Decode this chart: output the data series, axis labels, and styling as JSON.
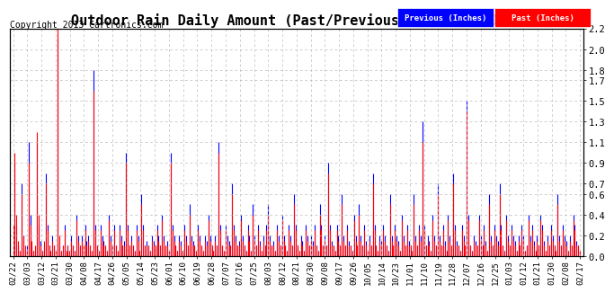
{
  "title": "Outdoor Rain Daily Amount (Past/Previous Year) 20130222",
  "copyright": "Copyright 2013 Cartronics.com",
  "legend_labels": [
    "Previous (Inches)",
    "Past (Inches)"
  ],
  "legend_colors": [
    "#0000FF",
    "#FF0000"
  ],
  "background_color": "#ffffff",
  "plot_bg": "#ffffff",
  "grid_color": "#bbbbbb",
  "ylim": [
    0.0,
    2.2
  ],
  "yticks": [
    0.0,
    0.2,
    0.4,
    0.6,
    0.7,
    0.9,
    1.1,
    1.3,
    1.5,
    1.7,
    1.8,
    2.0,
    2.2
  ],
  "x_tick_labels": [
    "02/22",
    "03/03",
    "03/12",
    "03/21",
    "03/30",
    "04/08",
    "04/17",
    "04/26",
    "05/05",
    "05/14",
    "05/23",
    "06/01",
    "06/10",
    "06/19",
    "06/28",
    "07/07",
    "07/16",
    "07/25",
    "08/03",
    "08/12",
    "08/21",
    "08/30",
    "09/08",
    "09/17",
    "09/26",
    "10/05",
    "10/14",
    "10/23",
    "11/01",
    "11/10",
    "11/19",
    "11/28",
    "12/07",
    "12/16",
    "12/25",
    "01/03",
    "01/12",
    "01/21",
    "01/30",
    "02/08",
    "02/17"
  ],
  "title_fontsize": 11,
  "copyright_fontsize": 7,
  "tick_fontsize": 6.5,
  "ytick_fontsize": 7.5,
  "prev_rain": [
    0.1,
    0.9,
    0.3,
    0.1,
    0.05,
    0.7,
    0.2,
    0.05,
    0.1,
    1.1,
    0.4,
    0.1,
    0.05,
    0.05,
    1.1,
    0.3,
    0.15,
    0.05,
    0.1,
    0.8,
    0.3,
    0.1,
    0.05,
    0.2,
    0.1,
    0.05,
    2.1,
    0.1,
    0.05,
    0.1,
    0.3,
    0.05,
    0.1,
    0.05,
    0.2,
    0.1,
    0.05,
    0.4,
    0.2,
    0.1,
    0.2,
    0.1,
    0.3,
    0.15,
    0.2,
    0.1,
    0.05,
    1.8,
    0.3,
    0.1,
    0.05,
    0.3,
    0.2,
    0.15,
    0.1,
    0.05,
    0.4,
    0.2,
    0.1,
    0.3,
    0.1,
    0.05,
    0.3,
    0.2,
    0.1,
    0.15,
    1.0,
    0.3,
    0.1,
    0.2,
    0.1,
    0.05,
    0.3,
    0.2,
    0.05,
    0.6,
    0.3,
    0.1,
    0.15,
    0.1,
    0.05,
    0.2,
    0.15,
    0.1,
    0.3,
    0.2,
    0.1,
    0.4,
    0.2,
    0.1,
    0.15,
    0.05,
    1.0,
    0.3,
    0.2,
    0.1,
    0.05,
    0.2,
    0.15,
    0.05,
    0.3,
    0.2,
    0.1,
    0.5,
    0.2,
    0.15,
    0.1,
    0.05,
    0.3,
    0.2,
    0.1,
    0.05,
    0.2,
    0.15,
    0.4,
    0.2,
    0.1,
    0.05,
    0.2,
    0.1,
    1.1,
    0.3,
    0.1,
    0.05,
    0.3,
    0.2,
    0.15,
    0.1,
    0.7,
    0.3,
    0.2,
    0.1,
    0.15,
    0.4,
    0.2,
    0.1,
    0.05,
    0.3,
    0.2,
    0.05,
    0.5,
    0.2,
    0.1,
    0.3,
    0.15,
    0.05,
    0.2,
    0.1,
    0.3,
    0.5,
    0.2,
    0.1,
    0.15,
    0.05,
    0.3,
    0.2,
    0.1,
    0.4,
    0.2,
    0.1,
    0.05,
    0.3,
    0.2,
    0.1,
    0.6,
    0.3,
    0.1,
    0.05,
    0.2,
    0.15,
    0.05,
    0.3,
    0.2,
    0.1,
    0.2,
    0.15,
    0.3,
    0.1,
    0.05,
    0.5,
    0.3,
    0.1,
    0.2,
    0.1,
    0.9,
    0.3,
    0.15,
    0.1,
    0.05,
    0.3,
    0.2,
    0.1,
    0.6,
    0.2,
    0.1,
    0.3,
    0.15,
    0.1,
    0.05,
    0.4,
    0.2,
    0.1,
    0.5,
    0.2,
    0.1,
    0.3,
    0.15,
    0.05,
    0.2,
    0.1,
    0.8,
    0.3,
    0.1,
    0.05,
    0.2,
    0.15,
    0.3,
    0.2,
    0.1,
    0.05,
    0.6,
    0.2,
    0.1,
    0.3,
    0.2,
    0.15,
    0.05,
    0.4,
    0.2,
    0.1,
    0.3,
    0.15,
    0.1,
    0.05,
    0.6,
    0.2,
    0.1,
    0.3,
    0.2,
    1.3,
    0.3,
    0.1,
    0.2,
    0.15,
    0.05,
    0.4,
    0.2,
    0.1,
    0.7,
    0.2,
    0.1,
    0.3,
    0.15,
    0.05,
    0.4,
    0.2,
    0.1,
    0.8,
    0.3,
    0.15,
    0.1,
    0.05,
    0.3,
    0.2,
    0.1,
    1.5,
    0.4,
    0.1,
    0.05,
    0.2,
    0.15,
    0.1,
    0.4,
    0.2,
    0.1,
    0.3,
    0.15,
    0.05,
    0.6,
    0.2,
    0.1,
    0.3,
    0.2,
    0.15,
    0.7,
    0.3,
    0.1,
    0.05,
    0.4,
    0.2,
    0.1,
    0.3,
    0.2,
    0.15,
    0.05,
    0.2,
    0.1,
    0.3,
    0.2,
    0.05,
    0.1,
    0.4,
    0.2,
    0.3,
    0.15,
    0.05,
    0.2,
    0.1,
    0.4,
    0.3,
    0.15,
    0.05,
    0.2,
    0.1,
    0.3,
    0.2,
    0.1,
    0.05,
    0.6,
    0.2,
    0.1,
    0.3,
    0.2,
    0.15,
    0.05,
    0.2,
    0.1,
    0.4,
    0.3,
    0.15,
    0.1,
    0.05
  ],
  "past_rain": [
    0.3,
    1.0,
    0.4,
    0.15,
    0.05,
    0.6,
    0.2,
    0.1,
    0.05,
    0.9,
    0.3,
    0.15,
    0.05,
    0.1,
    1.2,
    0.4,
    0.1,
    0.05,
    0.15,
    0.7,
    0.25,
    0.1,
    0.05,
    0.15,
    0.1,
    0.05,
    2.2,
    0.2,
    0.05,
    0.1,
    0.25,
    0.05,
    0.1,
    0.05,
    0.15,
    0.1,
    0.05,
    0.35,
    0.15,
    0.1,
    0.15,
    0.1,
    0.25,
    0.1,
    0.15,
    0.1,
    0.05,
    1.6,
    0.25,
    0.1,
    0.05,
    0.25,
    0.15,
    0.1,
    0.1,
    0.05,
    0.35,
    0.15,
    0.1,
    0.25,
    0.1,
    0.05,
    0.25,
    0.15,
    0.1,
    0.1,
    0.9,
    0.25,
    0.1,
    0.15,
    0.1,
    0.05,
    0.25,
    0.15,
    0.05,
    0.5,
    0.25,
    0.1,
    0.1,
    0.1,
    0.05,
    0.15,
    0.1,
    0.1,
    0.25,
    0.15,
    0.1,
    0.35,
    0.15,
    0.1,
    0.1,
    0.05,
    0.9,
    0.25,
    0.15,
    0.1,
    0.05,
    0.15,
    0.1,
    0.05,
    0.25,
    0.15,
    0.1,
    0.4,
    0.15,
    0.1,
    0.1,
    0.05,
    0.25,
    0.15,
    0.1,
    0.05,
    0.15,
    0.1,
    0.35,
    0.15,
    0.1,
    0.05,
    0.15,
    0.1,
    1.0,
    0.25,
    0.1,
    0.05,
    0.25,
    0.15,
    0.1,
    0.1,
    0.6,
    0.25,
    0.15,
    0.1,
    0.1,
    0.35,
    0.15,
    0.1,
    0.05,
    0.25,
    0.15,
    0.05,
    0.4,
    0.15,
    0.1,
    0.25,
    0.1,
    0.05,
    0.15,
    0.1,
    0.25,
    0.4,
    0.15,
    0.1,
    0.1,
    0.05,
    0.25,
    0.15,
    0.1,
    0.35,
    0.15,
    0.1,
    0.05,
    0.25,
    0.15,
    0.1,
    0.5,
    0.25,
    0.1,
    0.05,
    0.15,
    0.1,
    0.05,
    0.25,
    0.15,
    0.1,
    0.15,
    0.1,
    0.25,
    0.1,
    0.05,
    0.4,
    0.25,
    0.1,
    0.15,
    0.1,
    0.8,
    0.25,
    0.1,
    0.1,
    0.05,
    0.25,
    0.15,
    0.1,
    0.5,
    0.15,
    0.1,
    0.25,
    0.1,
    0.1,
    0.05,
    0.35,
    0.15,
    0.1,
    0.4,
    0.15,
    0.1,
    0.25,
    0.1,
    0.05,
    0.15,
    0.1,
    0.7,
    0.25,
    0.1,
    0.05,
    0.15,
    0.1,
    0.25,
    0.15,
    0.1,
    0.05,
    0.5,
    0.15,
    0.1,
    0.25,
    0.15,
    0.1,
    0.05,
    0.35,
    0.15,
    0.1,
    0.25,
    0.1,
    0.1,
    0.05,
    0.5,
    0.15,
    0.1,
    0.25,
    0.15,
    1.1,
    0.25,
    0.1,
    0.15,
    0.1,
    0.05,
    0.35,
    0.15,
    0.1,
    0.6,
    0.15,
    0.1,
    0.25,
    0.1,
    0.05,
    0.35,
    0.15,
    0.1,
    0.7,
    0.25,
    0.1,
    0.1,
    0.05,
    0.25,
    0.15,
    0.1,
    1.4,
    0.35,
    0.1,
    0.05,
    0.15,
    0.1,
    0.1,
    0.35,
    0.15,
    0.1,
    0.25,
    0.1,
    0.05,
    0.5,
    0.15,
    0.1,
    0.25,
    0.15,
    0.1,
    0.6,
    0.25,
    0.1,
    0.05,
    0.35,
    0.15,
    0.1,
    0.25,
    0.15,
    0.1,
    0.05,
    0.15,
    0.1,
    0.25,
    0.15,
    0.05,
    0.1,
    0.35,
    0.15,
    0.25,
    0.1,
    0.05,
    0.15,
    0.1,
    0.35,
    0.25,
    0.1,
    0.05,
    0.15,
    0.1,
    0.25,
    0.15,
    0.1,
    0.05,
    0.5,
    0.15,
    0.1,
    0.25,
    0.15,
    0.1,
    0.05,
    0.15,
    0.1,
    0.35,
    0.25,
    0.1,
    0.1,
    0.05
  ]
}
